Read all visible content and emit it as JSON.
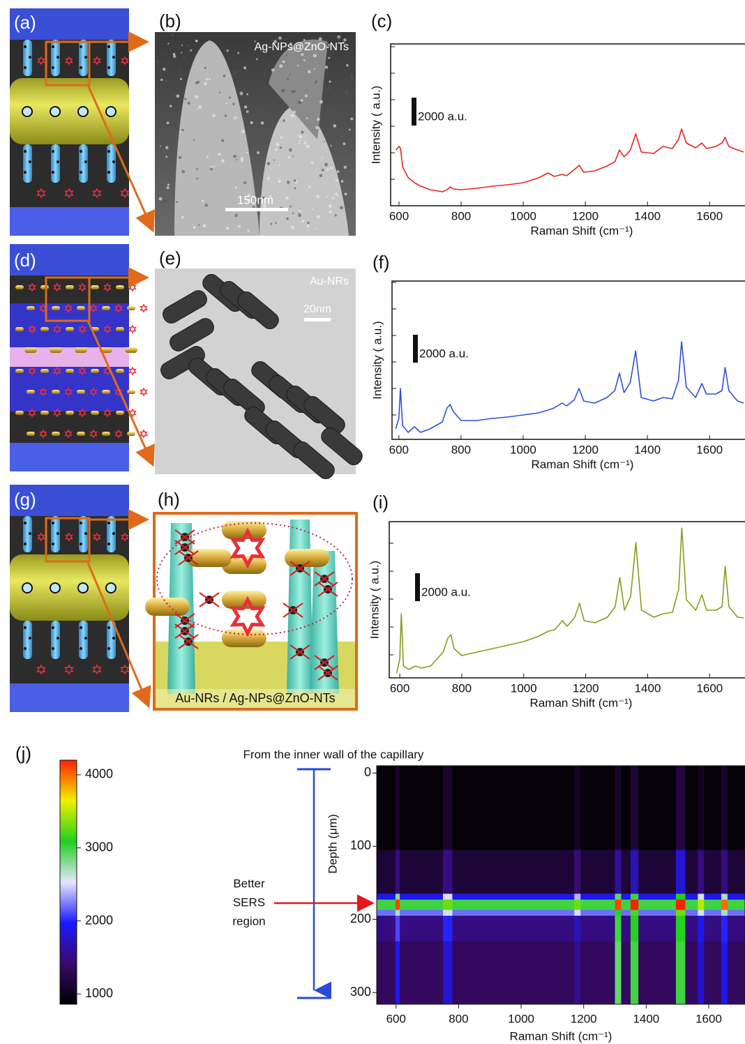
{
  "panel_labels": [
    "(a)",
    "(b)",
    "(c)",
    "(d)",
    "(e)",
    "(f)",
    "(g)",
    "(h)",
    "(i)",
    "(j)"
  ],
  "image_texts": {
    "b_caption": "Ag-NPs@ZnO-NTs",
    "b_scale": "150nm",
    "e_caption": "Au-NRs",
    "e_scale": "20nm",
    "h_caption": "Au-NRs / Ag-NPs@ZnO-NTs"
  },
  "chart_data": [
    {
      "type": "line",
      "x_label": "Raman Shift (cm⁻¹)",
      "y_label": "Intensity ( a.u.)",
      "color": "#e8241e",
      "x": [
        590,
        600,
        605,
        612,
        630,
        650,
        670,
        700,
        740,
        755,
        765,
        775,
        800,
        850,
        900,
        950,
        1000,
        1050,
        1080,
        1100,
        1125,
        1140,
        1165,
        1180,
        1195,
        1230,
        1270,
        1295,
        1310,
        1325,
        1345,
        1362,
        1380,
        1420,
        1450,
        1480,
        1500,
        1510,
        1525,
        1555,
        1575,
        1590,
        1620,
        1640,
        1650,
        1662,
        1690,
        1710
      ],
      "values": [
        4000,
        4250,
        4100,
        2750,
        2000,
        1650,
        1400,
        1150,
        1000,
        1150,
        1350,
        1200,
        1150,
        1250,
        1400,
        1500,
        1650,
        2000,
        2350,
        2100,
        2250,
        2150,
        2600,
        2900,
        2400,
        2500,
        2850,
        3150,
        4000,
        3500,
        4000,
        5150,
        3850,
        3750,
        4250,
        4100,
        4750,
        5500,
        4500,
        4150,
        4500,
        4100,
        4250,
        4500,
        4900,
        4250,
        4000,
        3850
      ],
      "xlim": [
        573,
        1714
      ],
      "ylim": [
        0,
        11600
      ],
      "xticks": [
        600,
        800,
        1000,
        1200,
        1400,
        1600
      ],
      "yticks": [
        1900,
        3800,
        5700,
        7600,
        9500,
        11400
      ],
      "ytick_labels": false,
      "scale_bar": {
        "value": 2000,
        "label": "2000 a.u."
      }
    },
    {
      "type": "line",
      "x_label": "Raman Shift (cm⁻¹)",
      "y_label": "Intensity ( a.u.)",
      "color": "#2e4fd8",
      "x": [
        590,
        600,
        605,
        612,
        630,
        650,
        670,
        700,
        740,
        755,
        765,
        775,
        800,
        850,
        900,
        950,
        1000,
        1050,
        1080,
        1100,
        1125,
        1140,
        1165,
        1180,
        1195,
        1230,
        1270,
        1295,
        1310,
        1325,
        1345,
        1362,
        1380,
        1420,
        1450,
        1480,
        1500,
        1510,
        1525,
        1555,
        1575,
        1590,
        1620,
        1640,
        1650,
        1662,
        1690,
        1710
      ],
      "values": [
        750,
        1500,
        3650,
        1000,
        500,
        900,
        500,
        750,
        1250,
        2250,
        2500,
        2000,
        1350,
        1350,
        1500,
        1600,
        1750,
        1900,
        2100,
        2250,
        2600,
        2400,
        2850,
        3650,
        2750,
        2600,
        3000,
        3500,
        4750,
        3350,
        4100,
        6350,
        3000,
        2750,
        3000,
        2900,
        4250,
        7000,
        3750,
        3000,
        4000,
        3250,
        3250,
        3500,
        5150,
        3500,
        2750,
        2600
      ],
      "xlim": [
        578,
        1714
      ],
      "ylim": [
        0,
        11350
      ],
      "xticks": [
        600,
        800,
        1000,
        1200,
        1400,
        1600
      ],
      "yticks": [
        1750,
        3650,
        5550,
        7450,
        9350,
        11250
      ],
      "ytick_labels": false,
      "scale_bar": {
        "value": 2000,
        "label": "2000 a.u."
      }
    },
    {
      "type": "line",
      "x_label": "Raman Shift (cm⁻¹)",
      "y_label": "Intensity ( a.u.)",
      "color": "#8a9a1c",
      "x": [
        590,
        600,
        605,
        612,
        630,
        650,
        670,
        700,
        740,
        755,
        765,
        775,
        800,
        850,
        900,
        950,
        1000,
        1050,
        1080,
        1100,
        1125,
        1140,
        1165,
        1180,
        1195,
        1230,
        1270,
        1295,
        1310,
        1325,
        1345,
        1362,
        1380,
        1420,
        1450,
        1480,
        1500,
        1510,
        1525,
        1555,
        1575,
        1590,
        1620,
        1640,
        1650,
        1662,
        1690,
        1710
      ],
      "values": [
        350,
        1350,
        4600,
        850,
        600,
        850,
        700,
        850,
        1850,
        2850,
        3100,
        2100,
        1600,
        1850,
        2100,
        2350,
        2600,
        3000,
        3350,
        3450,
        4100,
        3700,
        4350,
        5350,
        4100,
        3950,
        4350,
        5100,
        7200,
        4850,
        5850,
        9700,
        4850,
        4350,
        4600,
        4700,
        6350,
        10750,
        5600,
        4850,
        5950,
        4850,
        4850,
        5100,
        8000,
        5100,
        4350,
        4300
      ],
      "xlim": [
        566,
        1714
      ],
      "ylim": [
        0,
        11200
      ],
      "xticks": [
        600,
        800,
        1000,
        1200,
        1400,
        1600
      ],
      "yticks": [
        1650,
        3650,
        5650,
        7650,
        9650
      ],
      "ytick_labels": false,
      "scale_bar": {
        "value": 2000,
        "label": "2000 a.u."
      }
    },
    {
      "type": "heatmap",
      "title": "From the inner wall of the capillary",
      "x_label": "Raman Shift (cm⁻¹)",
      "y_label": "Depth  (μm)",
      "annotations": [
        "Better",
        "SERS",
        "region"
      ],
      "x_edges": [
        538,
        598,
        612,
        750,
        780,
        1170,
        1190,
        1300,
        1320,
        1350,
        1375,
        1495,
        1525,
        1565,
        1585,
        1640,
        1660,
        1716
      ],
      "y_edges": [
        -10,
        105,
        165,
        173,
        187,
        195,
        230,
        316
      ],
      "z": [
        [
          900,
          1100,
          900,
          1100,
          900,
          1050,
          900,
          1100,
          900,
          1150,
          900,
          1200,
          900,
          1050,
          900,
          1100,
          900
        ],
        [
          1150,
          1500,
          1150,
          1500,
          1150,
          1450,
          1150,
          1600,
          1150,
          1700,
          1150,
          1800,
          1150,
          1500,
          1150,
          1500,
          1150
        ],
        [
          1900,
          2800,
          1900,
          2500,
          1900,
          2400,
          1900,
          2900,
          1900,
          3000,
          1900,
          3100,
          1900,
          2600,
          1900,
          2700,
          1900
        ],
        [
          3000,
          4100,
          3000,
          3300,
          3000,
          3300,
          3000,
          4100,
          3000,
          4200,
          3000,
          4200,
          3000,
          3500,
          3000,
          4000,
          3000
        ],
        [
          2200,
          2700,
          2200,
          2600,
          2200,
          2500,
          2200,
          3100,
          2200,
          3200,
          2200,
          3300,
          2200,
          2600,
          2200,
          2700,
          2200
        ],
        [
          1500,
          2100,
          1500,
          2000,
          1500,
          1700,
          1500,
          3000,
          1500,
          3100,
          1500,
          3100,
          1500,
          1900,
          1500,
          2000,
          1500
        ],
        [
          1350,
          1900,
          1350,
          1800,
          1350,
          1550,
          1350,
          2900,
          1350,
          3000,
          1350,
          3000,
          1350,
          1800,
          1350,
          1900,
          1350
        ]
      ],
      "xlim": [
        538,
        1716
      ],
      "ylim": [
        -10,
        316
      ],
      "y_inverted": true,
      "xticks": [
        600,
        800,
        1000,
        1200,
        1400,
        1600
      ],
      "yticks": [
        0,
        100,
        200,
        300
      ],
      "zlim": [
        860,
        4200
      ],
      "colorbar_ticks": [
        1000,
        2000,
        3000,
        4000
      ],
      "colormap": [
        "#000000",
        "#3a0a6a",
        "#1a1aff",
        "#e6e6ff",
        "#20d020",
        "#f0f000",
        "#ff2000"
      ]
    }
  ]
}
